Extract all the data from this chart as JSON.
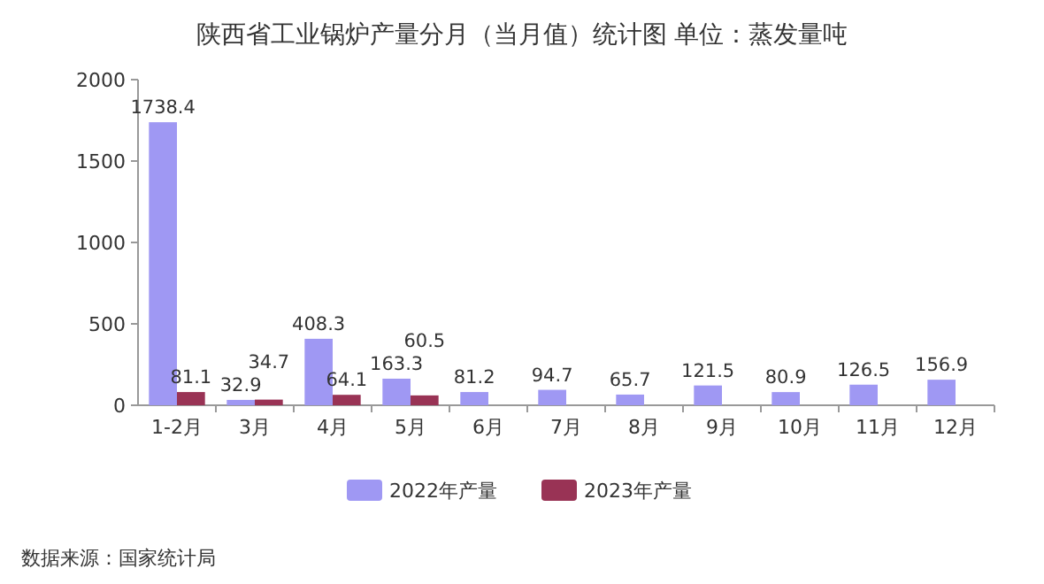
{
  "chart_data": {
    "type": "bar",
    "title": "陕西省工业锅炉产量分月（当月值）统计图 单位：蒸发量吨",
    "categories": [
      "1-2月",
      "3月",
      "4月",
      "5月",
      "6月",
      "7月",
      "8月",
      "9月",
      "10月",
      "11月",
      "12月"
    ],
    "series": [
      {
        "name": "2022年产量",
        "color": "#9f98f3",
        "values": [
          1738.4,
          32.9,
          408.3,
          163.3,
          81.2,
          94.7,
          65.7,
          121.5,
          80.9,
          126.5,
          156.9
        ]
      },
      {
        "name": "2023年产量",
        "color": "#993355",
        "values": [
          81.1,
          34.7,
          64.1,
          60.5,
          null,
          null,
          null,
          null,
          null,
          null,
          null
        ]
      }
    ],
    "ylim": [
      0,
      2000
    ],
    "yticks": [
      0,
      500,
      1000,
      1500,
      2000
    ],
    "data_labels": true,
    "legend": "bottom",
    "annotations": [
      "数据来源：国家统计局"
    ]
  }
}
